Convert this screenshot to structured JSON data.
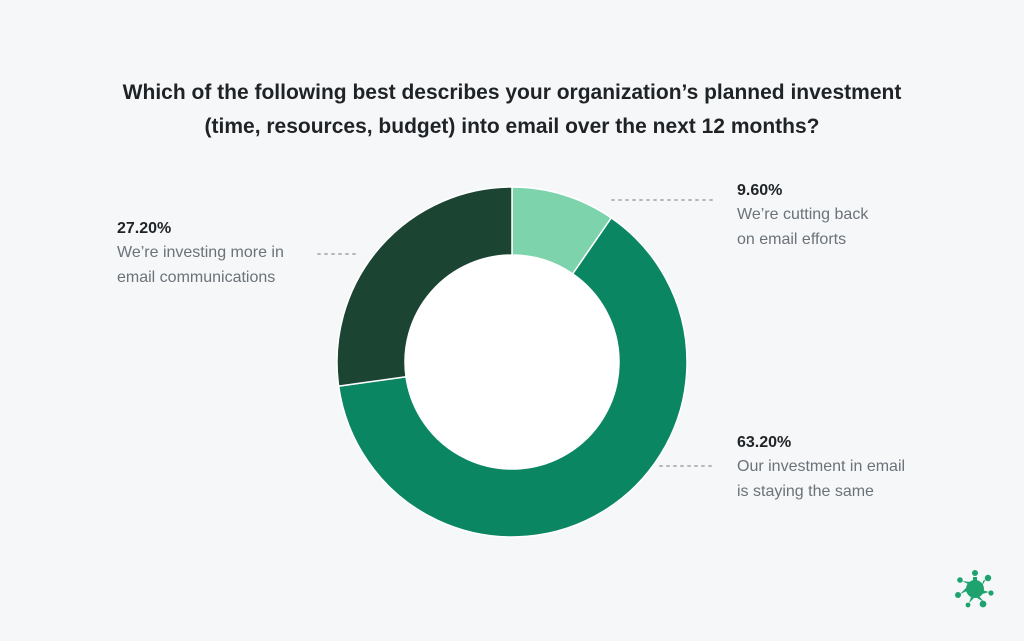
{
  "title_lines": [
    "Which of the following best describes your organization’s planned investment",
    "(time, resources, budget) into email over the next 12 months?"
  ],
  "chart_data": {
    "type": "pie",
    "donut": true,
    "title": "Which of the following best describes your organization’s planned investment (time, resources, budget) into email over the next 12 months?",
    "slices": [
      {
        "label_lines": [
          "We’re cutting back",
          "on email efforts"
        ],
        "value": 9.6,
        "display": "9.60%",
        "color": "#7dd3ab"
      },
      {
        "label_lines": [
          "Our investment in email",
          "is staying the same"
        ],
        "value": 63.2,
        "display": "63.20%",
        "color": "#0b8662"
      },
      {
        "label_lines": [
          "We’re investing more in",
          "email communications"
        ],
        "value": 27.2,
        "display": "27.20%",
        "color": "#1c4433"
      }
    ],
    "legend": "callouts"
  },
  "colors": {
    "background": "#f5f7f9",
    "leader": "#b3b9bf",
    "logo": "#1fa36e"
  },
  "logo_icon": "splash-logo-icon"
}
